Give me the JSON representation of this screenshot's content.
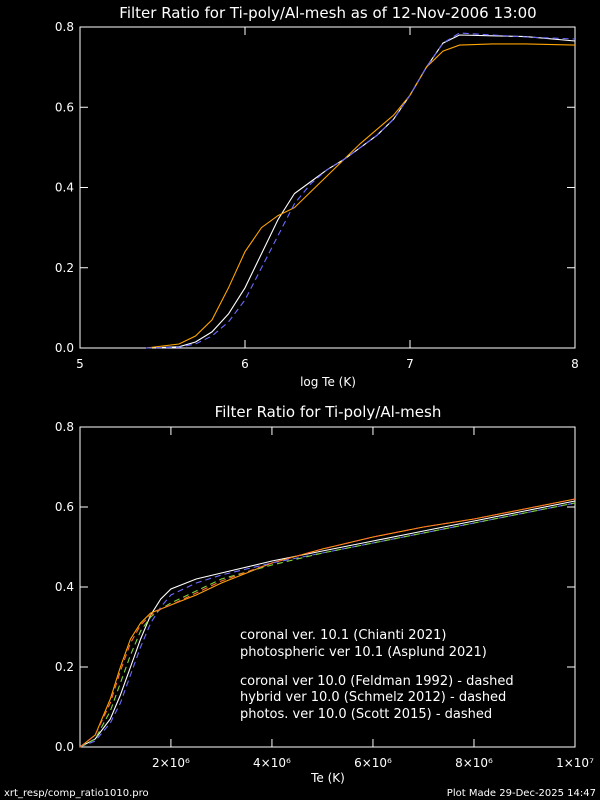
{
  "chart_data": [
    {
      "type": "line",
      "title": "Filter Ratio for Ti-poly/Al-mesh as of 12-Nov-2006 13:00",
      "xlabel": "log Te (K)",
      "ylabel": "",
      "xlim": [
        5,
        8
      ],
      "ylim": [
        0,
        0.8
      ],
      "xticks": [
        {
          "v": 5,
          "label": "5"
        },
        {
          "v": 6,
          "label": "6"
        },
        {
          "v": 7,
          "label": "7"
        },
        {
          "v": 8,
          "label": "8"
        }
      ],
      "yticks": [
        {
          "v": 0,
          "label": "0.0"
        },
        {
          "v": 0.2,
          "label": "0.2"
        },
        {
          "v": 0.4,
          "label": "0.4"
        },
        {
          "v": 0.6,
          "label": "0.6"
        },
        {
          "v": 0.8,
          "label": "0.8"
        }
      ],
      "series": [
        {
          "color": "#ffffff",
          "dashed": false,
          "x": [
            5.4,
            5.6,
            5.7,
            5.8,
            5.9,
            6.0,
            6.1,
            6.2,
            6.3,
            6.4,
            6.5,
            6.6,
            6.7,
            6.8,
            6.9,
            7.0,
            7.1,
            7.2,
            7.3,
            7.5,
            7.7,
            8.0
          ],
          "y": [
            0.0,
            0.003,
            0.015,
            0.04,
            0.085,
            0.15,
            0.235,
            0.32,
            0.385,
            0.415,
            0.445,
            0.47,
            0.5,
            0.53,
            0.57,
            0.63,
            0.7,
            0.76,
            0.78,
            0.778,
            0.776,
            0.765
          ]
        },
        {
          "color": "#ffa500",
          "dashed": false,
          "x": [
            5.4,
            5.6,
            5.7,
            5.8,
            5.9,
            6.0,
            6.1,
            6.2,
            6.3,
            6.4,
            6.5,
            6.6,
            6.7,
            6.8,
            6.9,
            7.0,
            7.1,
            7.2,
            7.3,
            7.5,
            7.7,
            8.0
          ],
          "y": [
            0.0,
            0.01,
            0.03,
            0.07,
            0.15,
            0.24,
            0.3,
            0.33,
            0.35,
            0.39,
            0.43,
            0.47,
            0.51,
            0.545,
            0.58,
            0.63,
            0.7,
            0.74,
            0.755,
            0.758,
            0.758,
            0.755
          ]
        },
        {
          "color": "#6a6aff",
          "dashed": true,
          "x": [
            5.4,
            5.6,
            5.7,
            5.8,
            5.9,
            6.0,
            6.1,
            6.2,
            6.3,
            6.4,
            6.5,
            6.6,
            6.7,
            6.8,
            6.9,
            7.0,
            7.1,
            7.2,
            7.3,
            7.5,
            7.7,
            8.0
          ],
          "y": [
            0.0,
            0.002,
            0.01,
            0.03,
            0.065,
            0.12,
            0.2,
            0.28,
            0.36,
            0.41,
            0.445,
            0.47,
            0.5,
            0.53,
            0.57,
            0.63,
            0.7,
            0.76,
            0.785,
            0.78,
            0.775,
            0.77
          ]
        }
      ]
    },
    {
      "type": "line",
      "title": "Filter Ratio for Ti-poly/Al-mesh",
      "xlabel": "Te (K)",
      "ylabel": "",
      "xlim": [
        200000,
        10000000
      ],
      "ylim": [
        0,
        0.8
      ],
      "xticks": [
        {
          "v": 2000000,
          "label": "2×10⁶"
        },
        {
          "v": 4000000,
          "label": "4×10⁶"
        },
        {
          "v": 6000000,
          "label": "6×10⁶"
        },
        {
          "v": 8000000,
          "label": "8×10⁶"
        },
        {
          "v": 10000000,
          "label": "1×10⁷"
        }
      ],
      "yticks": [
        {
          "v": 0,
          "label": "0.0"
        },
        {
          "v": 0.2,
          "label": "0.2"
        },
        {
          "v": 0.4,
          "label": "0.4"
        },
        {
          "v": 0.6,
          "label": "0.6"
        },
        {
          "v": 0.8,
          "label": "0.8"
        }
      ],
      "legend": [
        {
          "text": "coronal ver. 10.1 (Chianti 2021)",
          "color": "#ffffff"
        },
        {
          "text": "photospheric ver 10.1 (Asplund 2021)",
          "color": "#ffa500"
        },
        {
          "text": "coronal ver 10.0 (Feldman 1992) - dashed",
          "color": "#6a6aff"
        },
        {
          "text": "hybrid ver 10.0 (Schmelz 2012) - dashed",
          "color": "#7cd33a"
        },
        {
          "text": "photos. ver 10.0 (Scott 2015) - dashed",
          "color": "#ff6a3a"
        }
      ],
      "series": [
        {
          "color": "#ffffff",
          "dashed": false,
          "x": [
            200000,
            500000,
            800000,
            1000000,
            1200000,
            1400000,
            1600000,
            1800000,
            2000000,
            2500000,
            3000000,
            4000000,
            5000000,
            6000000,
            7000000,
            8000000,
            9000000,
            10000000
          ],
          "y": [
            0.0,
            0.02,
            0.07,
            0.13,
            0.2,
            0.27,
            0.33,
            0.37,
            0.395,
            0.42,
            0.435,
            0.465,
            0.49,
            0.515,
            0.54,
            0.565,
            0.59,
            0.615
          ]
        },
        {
          "color": "#ffa500",
          "dashed": false,
          "x": [
            200000,
            500000,
            800000,
            1000000,
            1200000,
            1400000,
            1600000,
            1800000,
            2000000,
            2500000,
            3000000,
            4000000,
            5000000,
            6000000,
            7000000,
            8000000,
            9000000,
            10000000
          ],
          "y": [
            0.0,
            0.03,
            0.12,
            0.2,
            0.27,
            0.31,
            0.335,
            0.345,
            0.355,
            0.38,
            0.41,
            0.46,
            0.495,
            0.525,
            0.55,
            0.57,
            0.595,
            0.62
          ]
        },
        {
          "color": "#6a6aff",
          "dashed": true,
          "x": [
            200000,
            500000,
            800000,
            1000000,
            1200000,
            1400000,
            1600000,
            1800000,
            2000000,
            2500000,
            3000000,
            4000000,
            5000000,
            6000000,
            7000000,
            8000000,
            9000000,
            10000000
          ],
          "y": [
            0.0,
            0.015,
            0.06,
            0.11,
            0.18,
            0.25,
            0.31,
            0.35,
            0.38,
            0.41,
            0.43,
            0.46,
            0.485,
            0.51,
            0.535,
            0.56,
            0.585,
            0.61
          ]
        },
        {
          "color": "#7cd33a",
          "dashed": true,
          "x": [
            200000,
            500000,
            800000,
            1000000,
            1200000,
            1400000,
            1600000,
            1800000,
            2000000,
            2500000,
            3000000,
            4000000,
            5000000,
            6000000,
            7000000,
            8000000,
            9000000,
            10000000
          ],
          "y": [
            0.0,
            0.02,
            0.09,
            0.16,
            0.23,
            0.29,
            0.325,
            0.345,
            0.36,
            0.39,
            0.42,
            0.455,
            0.485,
            0.51,
            0.535,
            0.56,
            0.585,
            0.61
          ]
        },
        {
          "color": "#ff6a3a",
          "dashed": true,
          "x": [
            200000,
            500000,
            800000,
            1000000,
            1200000,
            1400000,
            1600000,
            1800000,
            2000000,
            2500000,
            3000000,
            4000000,
            5000000,
            6000000,
            7000000,
            8000000,
            9000000,
            10000000
          ],
          "y": [
            0.0,
            0.03,
            0.11,
            0.19,
            0.26,
            0.305,
            0.33,
            0.345,
            0.355,
            0.385,
            0.415,
            0.46,
            0.495,
            0.525,
            0.55,
            0.57,
            0.595,
            0.62
          ]
        }
      ]
    }
  ],
  "footer": {
    "left": "xrt_resp/comp_ratio1010.pro",
    "right": "Plot Made 29-Dec-2025 14:47"
  }
}
